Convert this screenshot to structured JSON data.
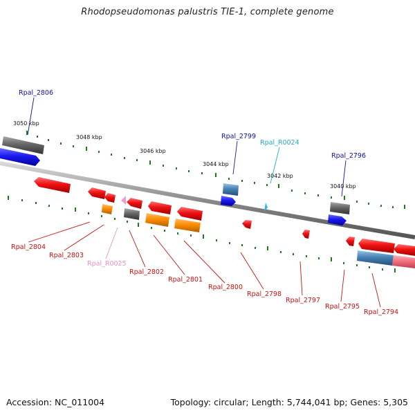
{
  "title": "Rhodopseudomonas palustris TIE-1, complete genome",
  "footer": {
    "accession": "Accession: NC_011004",
    "topology": "Topology: circular; Length: 5,744,041 bp; Genes: 5,305"
  },
  "scale_labels": [
    "3050 kbp",
    "3048 kbp",
    "3046 kbp",
    "3044 kbp",
    "3042 kbp",
    "3040 kbp"
  ],
  "gene_labels": [
    {
      "text": "Rpal_2806",
      "color": "#1010a0"
    },
    {
      "text": "Rpal_2799",
      "color": "#1010a0"
    },
    {
      "text": "Rpal_R0024",
      "color": "#22aacc"
    },
    {
      "text": "Rpal_2796",
      "color": "#1010a0"
    },
    {
      "text": "Rpal_2804",
      "color": "#cc1010"
    },
    {
      "text": "Rpal_2803",
      "color": "#cc1010"
    },
    {
      "text": "Rpal_R0025",
      "color": "#f090c0"
    },
    {
      "text": "Rpal_2802",
      "color": "#cc1010"
    },
    {
      "text": "Rpal_2801",
      "color": "#cc1010"
    },
    {
      "text": "Rpal_2800",
      "color": "#cc1010"
    },
    {
      "text": "Rpal_2798",
      "color": "#cc1010"
    },
    {
      "text": "Rpal_2797",
      "color": "#cc1010"
    },
    {
      "text": "Rpal_2795",
      "color": "#cc1010"
    },
    {
      "text": "Rpal_2794",
      "color": "#cc1010"
    }
  ],
  "colors": {
    "backbone": "#8a8a8a",
    "forward_cds": "#1a1aee",
    "reverse_cds": "#ee1111",
    "pseudogene_grey": "#666666",
    "steelblue_gene": "#4682b4",
    "orange_gene": "#ff8c00",
    "rna_pink": "#f39ac8",
    "rna_cyan": "#2ab4e8",
    "tick_green": "#1e7a1e"
  }
}
